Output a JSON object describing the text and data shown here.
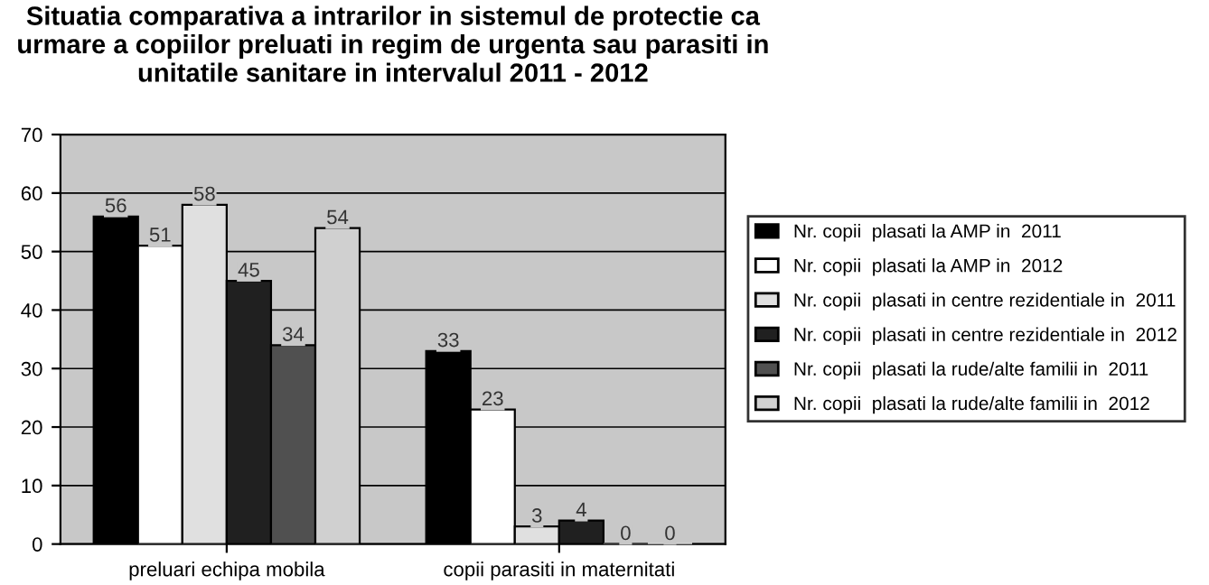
{
  "chart_data": {
    "type": "bar",
    "title": "Situatia comparativa a intrarilor in sistemul de protectie ca urmare a copiilor preluati in regim de urgenta sau parasiti in unitatile sanitare in intervalul 2011 - 2012",
    "categories": [
      "preluari echipa mobila",
      "copii parasiti in maternitati"
    ],
    "series": [
      {
        "name": "Nr. copii  plasati la AMP in  2011",
        "color": "#000000",
        "values": [
          56,
          33
        ]
      },
      {
        "name": "Nr. copii  plasati la AMP in  2012",
        "color": "#ffffff",
        "values": [
          51,
          23
        ]
      },
      {
        "name": "Nr. copii  plasati in centre rezidentiale in  2011",
        "color": "#e0e0e0",
        "values": [
          58,
          3
        ]
      },
      {
        "name": "Nr. copii  plasati in centre rezidentiale in  2012",
        "color": "#202020",
        "values": [
          45,
          4
        ]
      },
      {
        "name": "Nr. copii  plasati la rude/alte familii in  2011",
        "color": "#505050",
        "values": [
          34,
          0
        ]
      },
      {
        "name": "Nr. copii  plasati la rude/alte familii in  2012",
        "color": "#d0d0d0",
        "values": [
          54,
          0
        ]
      }
    ],
    "ylim": [
      0,
      70
    ],
    "yticks": [
      0,
      10,
      20,
      30,
      40,
      50,
      60,
      70
    ],
    "grid": "y",
    "legend": "right",
    "data_labels": true
  }
}
